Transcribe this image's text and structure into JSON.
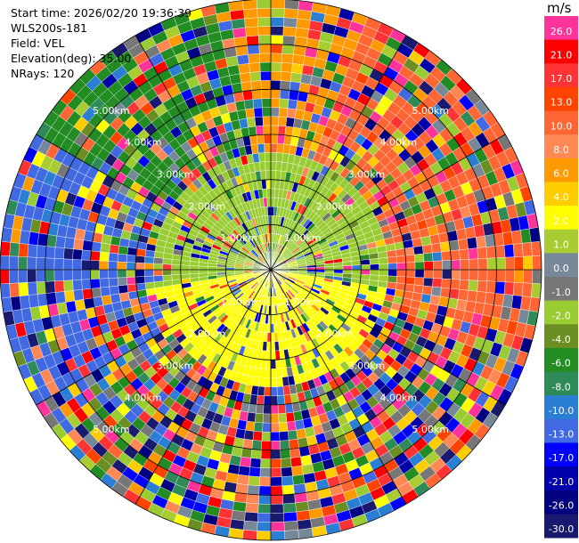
{
  "header": {
    "start_time": "Start time: 2026/02/20 19:36:39",
    "instrument": "WLS200s-181",
    "field": "Field: VEL",
    "elevation": "Elevation(deg): 35.00",
    "nrays": "NRays: 120"
  },
  "colorbar": {
    "unit": "m/s",
    "levels": [
      {
        "label": "26.0",
        "color": "#ff3399"
      },
      {
        "label": "21.0",
        "color": "#ff0000"
      },
      {
        "label": "17.0",
        "color": "#ff3333"
      },
      {
        "label": "13.0",
        "color": "#ff4400"
      },
      {
        "label": "10.0",
        "color": "#ff6633"
      },
      {
        "label": "8.0",
        "color": "#ff8855"
      },
      {
        "label": "6.0",
        "color": "#ff9900"
      },
      {
        "label": "4.0",
        "color": "#ffcc00"
      },
      {
        "label": "2.0",
        "color": "#ffff00"
      },
      {
        "label": "1.0",
        "color": "#aacc33"
      },
      {
        "label": "0.0",
        "color": "#778899"
      },
      {
        "label": "-1.0",
        "color": "#777777"
      },
      {
        "label": "-2.0",
        "color": "#99cc33"
      },
      {
        "label": "-4.0",
        "color": "#6b8e23"
      },
      {
        "label": "-6.0",
        "color": "#228b22"
      },
      {
        "label": "-8.0",
        "color": "#2e8b57"
      },
      {
        "label": "-10.0",
        "color": "#2a7fd4"
      },
      {
        "label": "-13.0",
        "color": "#4169e1"
      },
      {
        "label": "-17.0",
        "color": "#0000ff"
      },
      {
        "label": "-21.0",
        "color": "#0000aa"
      },
      {
        "label": "-26.0",
        "color": "#000080"
      },
      {
        "label": "-30.0",
        "color": "#191970"
      }
    ]
  },
  "chart_data": {
    "type": "heatmap",
    "projection": "polar-ppi",
    "field": "VEL",
    "units": "m/s",
    "elevation_deg": 35.0,
    "nrays": 120,
    "range_rings_km": [
      1.0,
      2.0,
      3.0,
      4.0,
      5.0
    ],
    "range_ring_labels": [
      "1.00km",
      "2.00km",
      "3.00km",
      "4.00km",
      "5.00km"
    ],
    "max_range_km": 6.0,
    "azimuth_spokes_deg": [
      0,
      30,
      60,
      90,
      120,
      150,
      180,
      210,
      240,
      270,
      300,
      330
    ],
    "dominant_regions": [
      {
        "sector": "north-east, far range",
        "velocity_m_s": 10.0
      },
      {
        "sector": "north, far range",
        "velocity_m_s": 6.0
      },
      {
        "sector": "west, far range",
        "velocity_m_s": -13.0
      },
      {
        "sector": "north-west, far range",
        "velocity_m_s": -6.0
      },
      {
        "sector": "near range south",
        "velocity_m_s": 2.0
      },
      {
        "sector": "near range north",
        "velocity_m_s": -2.0
      }
    ]
  }
}
